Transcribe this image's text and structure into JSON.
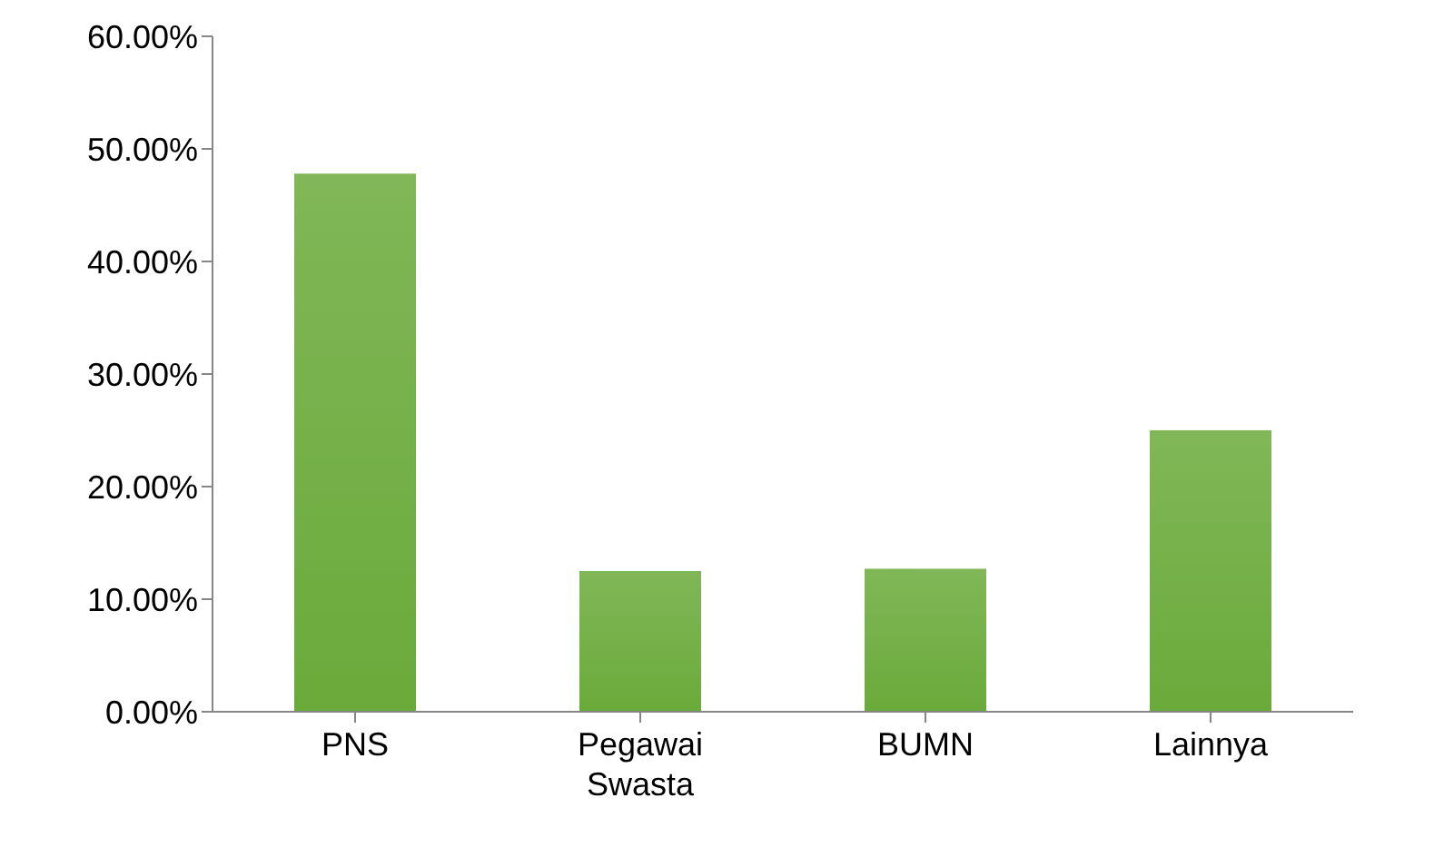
{
  "chart_data": {
    "type": "bar",
    "categories": [
      "PNS",
      "Pegawai Swasta",
      "BUMN",
      "Lainnya"
    ],
    "values": [
      47.8,
      12.5,
      12.7,
      25.0
    ],
    "color": "#6aaa3a",
    "ylim": [
      0,
      60
    ],
    "yticks": [
      {
        "value": 0,
        "label": "0.00%"
      },
      {
        "value": 10,
        "label": "10.00%"
      },
      {
        "value": 20,
        "label": "20.00%"
      },
      {
        "value": 30,
        "label": "30.00%"
      },
      {
        "value": 40,
        "label": "40.00%"
      },
      {
        "value": 50,
        "label": "50.00%"
      },
      {
        "value": 60,
        "label": "60.00%"
      }
    ],
    "grid": false,
    "legend": false
  }
}
